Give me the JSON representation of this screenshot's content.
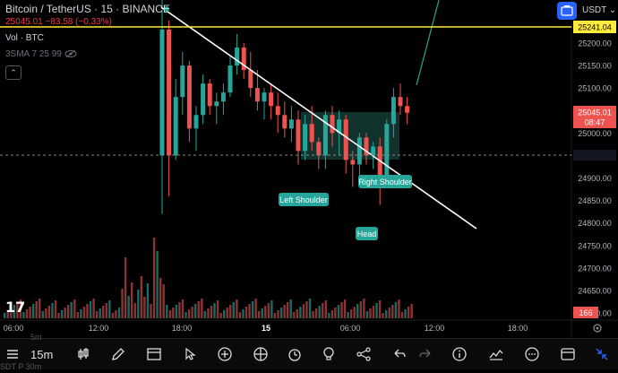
{
  "header": {
    "symbol_line": "Bitcoin / TetherUS · 15 · BINANCE",
    "price_line": "25045.01  −83.58 (−0.33%)",
    "volume_label": "Vol · BTC",
    "sma_label": "3SMA 7 25 99",
    "currency": "USDT"
  },
  "price_axis": {
    "ticks": [
      "25200.00",
      "25150.00",
      "25100.00",
      "25050.00",
      "25000.00",
      "24950.00",
      "24900.00",
      "24850.00",
      "24800.00",
      "24750.00",
      "24700.00",
      "24650.00",
      "24600.00"
    ],
    "highlight_level": "25241.04",
    "current_price": "25045.01",
    "countdown": "08:47",
    "volume_badge": "166"
  },
  "time_axis": {
    "labels": [
      "06:00",
      "12:00",
      "18:00",
      "15",
      "06:00",
      "12:00",
      "18:00"
    ]
  },
  "annotations": {
    "left_shoulder": "Left Shoulder",
    "head": "Head",
    "right_shoulder": "Right Shoulder"
  },
  "toolbar": {
    "timeframe": "15m",
    "ghost_top": "5m",
    "ghost_bottom": "SDT P 30m"
  },
  "logo_text": "17",
  "colors": {
    "up": "#26a69a",
    "down": "#ef5350",
    "accent": "#2962ff",
    "level": "#ffeb3b",
    "neckline_fill": "#1b4d45"
  }
}
